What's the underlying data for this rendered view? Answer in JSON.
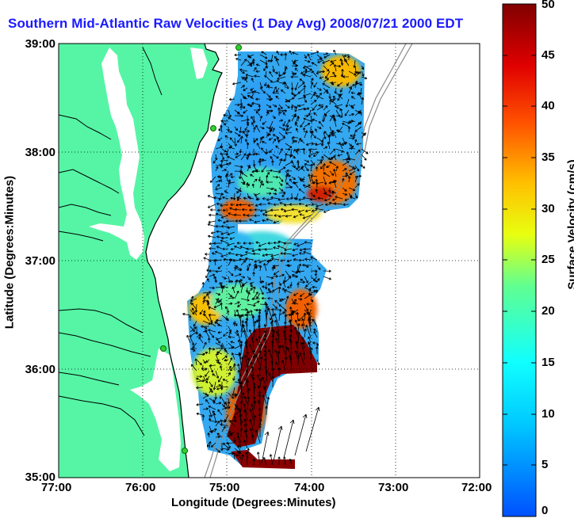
{
  "title": "Southern Mid-Atlantic Raw Velocities (1 Day Avg) 2008/07/21 2000 EDT",
  "map": {
    "x_ticks": [
      "77:00",
      "76:00",
      "75:00",
      "74:00",
      "73:00",
      "72:00"
    ],
    "y_ticks": [
      "39:00",
      "38:00",
      "37:00",
      "36:00",
      "35:00"
    ],
    "xlabel": "Longitude (Degrees:Minutes)",
    "ylabel": "Latitude (Degrees:Minutes)",
    "lon_range": [
      -77,
      -72
    ],
    "lat_range": [
      35,
      39
    ],
    "land_color": "#55f5a5",
    "grid": "dotted"
  },
  "colorbar": {
    "label": "Surface Velocity (cm/s)",
    "ticks": [
      "0",
      "5",
      "10",
      "15",
      "20",
      "25",
      "30",
      "35",
      "40",
      "45",
      "50"
    ],
    "range": [
      0,
      50
    ],
    "colormap": "jet"
  },
  "stations": [
    "station-1",
    "station-2",
    "station-3",
    "station-4"
  ]
}
